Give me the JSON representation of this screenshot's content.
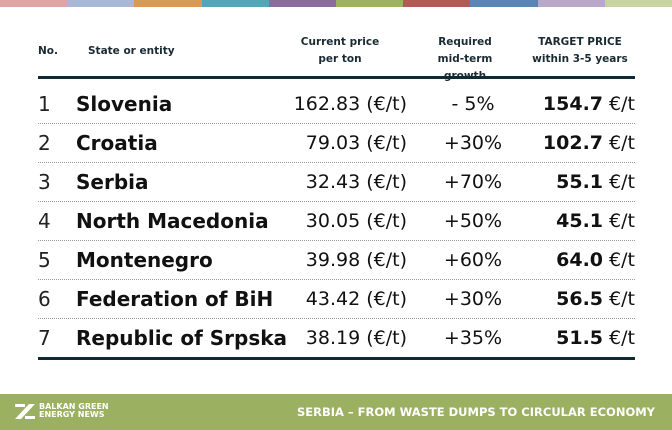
{
  "stripe_colors": [
    "#dea5a5",
    "#a8b8d8",
    "#d99a55",
    "#52a6b8",
    "#8b6c9f",
    "#9db35f",
    "#b45a55",
    "#5a85b5",
    "#b9a8c8",
    "#c8d4a0"
  ],
  "header": {
    "no": "No.",
    "entity": "State or entity",
    "price_line1": "Current price",
    "price_line2": "per ton",
    "growth_line1": "Required",
    "growth_line2": "mid-term growth",
    "target_line1": "TARGET PRICE",
    "target_line2": "within 3-5 years"
  },
  "rows": [
    {
      "no": "1",
      "name": "Slovenia",
      "price": "162.83 (€/t)",
      "growth": "- 5%",
      "target": "154.7",
      "unit": " €/t"
    },
    {
      "no": "2",
      "name": "Croatia",
      "price": "79.03 (€/t)",
      "growth": "+30%",
      "target": "102.7",
      "unit": " €/t"
    },
    {
      "no": "3",
      "name": "Serbia",
      "price": "32.43 (€/t)",
      "growth": "+70%",
      "target": "55.1",
      "unit": " €/t"
    },
    {
      "no": "4",
      "name": "North Macedonia",
      "price": "30.05 (€/t)",
      "growth": "+50%",
      "target": "45.1",
      "unit": " €/t"
    },
    {
      "no": "5",
      "name": "Montenegro",
      "price": "39.98 (€/t)",
      "growth": "+60%",
      "target": "64.0",
      "unit": " €/t"
    },
    {
      "no": "6",
      "name": "Federation of BiH",
      "price": "43.42 (€/t)",
      "growth": "+30%",
      "target": "56.5",
      "unit": " €/t"
    },
    {
      "no": "7",
      "name": "Republic of Srpska",
      "price": "38.19 (€/t)",
      "growth": "+35%",
      "target": "51.5",
      "unit": " €/t"
    }
  ],
  "footer": {
    "logo_line1": "BALKAN GREEN",
    "logo_line2": "ENERGY NEWS",
    "title": "SERBIA – FROM WASTE DUMPS TO CIRCULAR ECONOMY",
    "color": "#9bb060"
  }
}
